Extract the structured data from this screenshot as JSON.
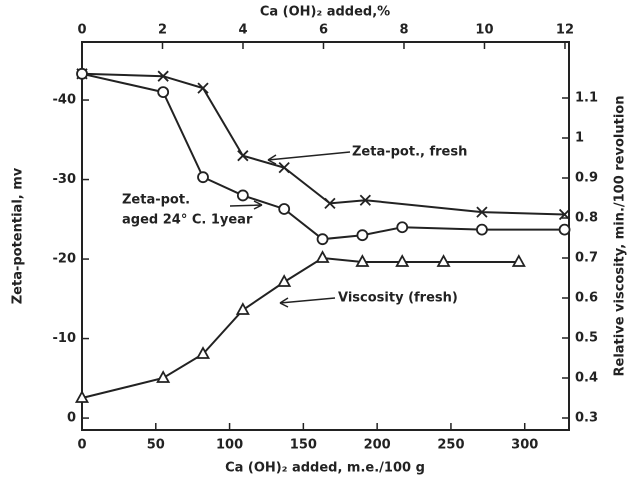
{
  "chart_data": {
    "type": "line",
    "x_label": "Ca (OH)₂ added, m.e./100 g",
    "x2_label": "Ca (OH)₂ added,%",
    "y_label": "Zeta-potential, mv",
    "y2_label": "Relative viscosity, min./100 revolution",
    "xlim": [
      0,
      330
    ],
    "xticks": [
      0,
      50,
      100,
      150,
      200,
      250,
      300
    ],
    "x2lim": [
      0,
      12.1
    ],
    "x2ticks": [
      0,
      2,
      4,
      6,
      8,
      10,
      12
    ],
    "ylim": [
      1.5,
      -47.3
    ],
    "yticks": [
      0,
      -10,
      -20,
      -30,
      -40
    ],
    "y2lim": [
      0.27,
      1.24
    ],
    "y2ticks": [
      0.3,
      0.4,
      0.5,
      0.6,
      0.7,
      0.8,
      0.9,
      1.0,
      1.1
    ],
    "series": [
      {
        "name": "Zeta-pot., fresh",
        "marker": "x",
        "color": "#222",
        "x": [
          0,
          55,
          82,
          109,
          137,
          168,
          192,
          271,
          327
        ],
        "values": [
          -43.3,
          -43,
          -41.5,
          -33,
          -31.5,
          -27,
          -27.4,
          -25.9,
          -25.6
        ]
      },
      {
        "name": "Zeta-pot. aged 24° C. 1year",
        "marker": "circle",
        "color": "#222",
        "x": [
          0,
          55,
          82,
          109,
          137,
          163,
          190,
          217,
          271,
          327
        ],
        "values": [
          -43.3,
          -41,
          -30.3,
          -28,
          -26.3,
          -22.5,
          -23,
          -24,
          -23.7,
          -23.7
        ]
      },
      {
        "name": "Viscosity (fresh)",
        "marker": "triangle",
        "color": "#222",
        "axis": "y2",
        "x": [
          0,
          55,
          82,
          109,
          137,
          163,
          190,
          217,
          245,
          296
        ],
        "values": [
          0.35,
          0.4,
          0.46,
          0.57,
          0.64,
          0.7,
          0.69,
          0.69,
          0.69,
          0.69
        ]
      }
    ],
    "annotations": [
      "Zeta-pot., fresh",
      "Zeta-pot.",
      "aged 24° C. 1year",
      "Viscosity (fresh)"
    ]
  }
}
